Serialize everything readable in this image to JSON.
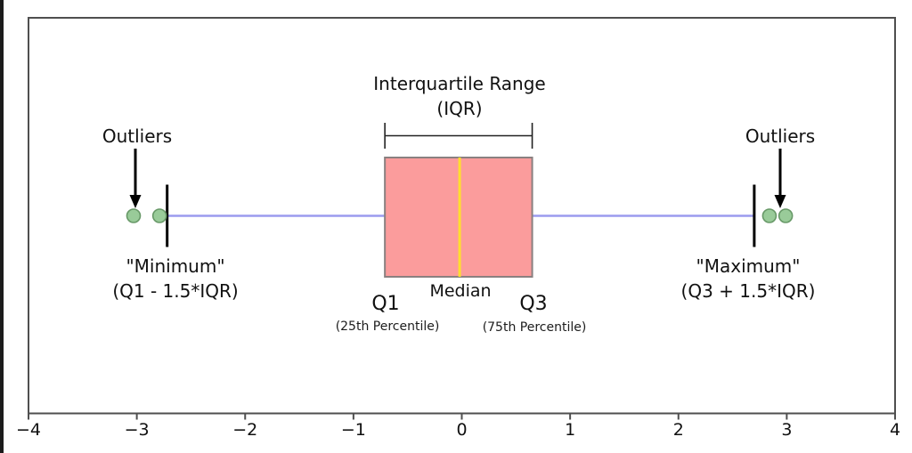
{
  "colors": {
    "text": "#111111",
    "spine": "#4f4f4f",
    "box-fill": "#FB9C9C",
    "box-edge": "#8A8080",
    "median": "#FFDE2E",
    "whisker": "#9B9BEF",
    "cap": "#000000",
    "outlier-fill": "#99CB99",
    "outlier-edge": "#679867"
  },
  "annotations": {
    "iqr_title_line1": "Interquartile Range",
    "iqr_title_line2": "(IQR)",
    "outliers_left": "Outliers",
    "outliers_right": "Outliers",
    "minimum_line1": "\"Minimum\"",
    "minimum_line2": "(Q1 - 1.5*IQR)",
    "maximum_line1": "\"Maximum\"",
    "maximum_line2": "(Q3 + 1.5*IQR)",
    "q1": "Q1",
    "q1_sub": "(25th Percentile)",
    "median": "Median",
    "q3": "Q3",
    "q3_sub": "(75th Percentile)"
  },
  "chart_data": {
    "type": "box",
    "orientation": "horizontal",
    "title": "",
    "xlabel": "",
    "ylabel": "",
    "grid": false,
    "xlim": [
      -4,
      4
    ],
    "xticks": [
      {
        "value": -4,
        "label": "−4"
      },
      {
        "value": -3,
        "label": "−3"
      },
      {
        "value": -2,
        "label": "−2"
      },
      {
        "value": -1,
        "label": "−1"
      },
      {
        "value": 0,
        "label": "0"
      },
      {
        "value": 1,
        "label": "1"
      },
      {
        "value": 2,
        "label": "2"
      },
      {
        "value": 3,
        "label": "3"
      },
      {
        "value": 4,
        "label": "4"
      }
    ],
    "box": {
      "q1": -0.71,
      "median": -0.02,
      "q3": 0.65,
      "whisker_low": -2.72,
      "whisker_high": 2.7,
      "outliers": [
        -3.03,
        -2.79,
        2.84,
        2.99
      ]
    }
  }
}
